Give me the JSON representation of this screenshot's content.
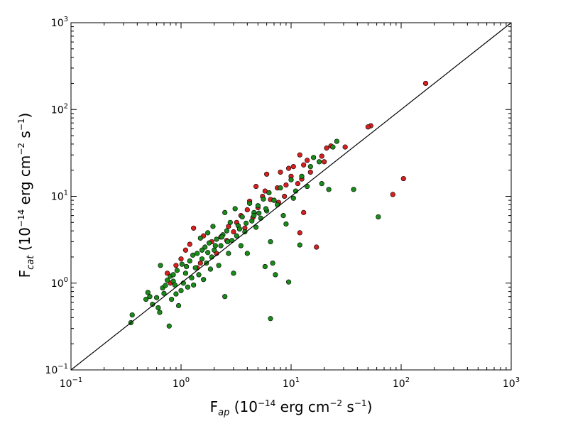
{
  "chart_data": {
    "type": "scatter",
    "title": "",
    "xscale": "log",
    "yscale": "log",
    "xlim": [
      0.1,
      1000
    ],
    "ylim": [
      0.1,
      1000
    ],
    "grid": false,
    "xlabel": {
      "main": "F",
      "sub": "ap",
      "rest1": " (10",
      "exp1": "−14",
      "rest2": " erg cm",
      "exp2": "−2",
      "rest3": " s",
      "exp3": "−1",
      "rest4": ")"
    },
    "ylabel": {
      "main": "F",
      "sub": "cat",
      "rest1": " (10",
      "exp1": "−14",
      "rest2": " erg cm",
      "exp2": "−2",
      "rest3": " s",
      "exp3": "−1",
      "rest4": ")"
    },
    "x_ticks": [
      {
        "value": 0.1,
        "base": "10",
        "exp": "−1"
      },
      {
        "value": 1,
        "base": "10",
        "exp": "0"
      },
      {
        "value": 10,
        "base": "10",
        "exp": "1"
      },
      {
        "value": 100,
        "base": "10",
        "exp": "2"
      },
      {
        "value": 1000,
        "base": "10",
        "exp": "3"
      }
    ],
    "y_ticks": [
      {
        "value": 0.1,
        "base": "10",
        "exp": "−1"
      },
      {
        "value": 1,
        "base": "10",
        "exp": "0"
      },
      {
        "value": 10,
        "base": "10",
        "exp": "1"
      },
      {
        "value": 100,
        "base": "10",
        "exp": "2"
      },
      {
        "value": 1000,
        "base": "10",
        "exp": "3"
      }
    ],
    "reference_line": {
      "type": "y=x",
      "color": "#000000"
    },
    "series": [
      {
        "color": "#d62020",
        "points": [
          [
            167,
            200
          ],
          [
            53,
            65
          ],
          [
            50,
            63
          ],
          [
            31,
            37
          ],
          [
            23,
            38
          ],
          [
            21,
            36
          ],
          [
            19,
            29
          ],
          [
            14,
            26
          ],
          [
            13,
            23
          ],
          [
            12,
            30
          ],
          [
            10.5,
            22
          ],
          [
            9.5,
            21
          ],
          [
            8,
            19
          ],
          [
            6,
            18
          ],
          [
            20,
            25
          ],
          [
            105,
            16
          ],
          [
            84,
            10.5
          ],
          [
            13,
            6.5
          ],
          [
            12,
            3.8
          ],
          [
            17,
            2.6
          ],
          [
            8.7,
            10
          ],
          [
            7.7,
            8.5
          ],
          [
            7,
            9
          ],
          [
            5.5,
            10
          ],
          [
            4.8,
            13
          ],
          [
            4.2,
            8.8
          ],
          [
            4,
            7
          ],
          [
            3.5,
            6
          ],
          [
            3.2,
            5
          ],
          [
            2.7,
            4.5
          ],
          [
            2.3,
            3.4
          ],
          [
            1.9,
            3
          ],
          [
            1.6,
            3.5
          ],
          [
            1.3,
            4.3
          ],
          [
            1.2,
            2.8
          ],
          [
            1.1,
            2.4
          ],
          [
            1.0,
            1.9
          ],
          [
            0.9,
            1.6
          ],
          [
            0.75,
            1.3
          ],
          [
            1.5,
            1.7
          ],
          [
            6.5,
            9.2
          ],
          [
            5.0,
            7.4
          ],
          [
            4.5,
            5.7
          ],
          [
            3.8,
            4.3
          ],
          [
            3.0,
            3.9
          ],
          [
            2.6,
            3.1
          ],
          [
            9.0,
            13.5
          ],
          [
            10,
            17
          ],
          [
            11.5,
            14
          ],
          [
            7.5,
            12.5
          ],
          [
            5.8,
            11.5
          ],
          [
            2.1,
            2.2
          ],
          [
            1.4,
            1.5
          ],
          [
            0.8,
            1.0
          ],
          [
            12.5,
            15.8
          ],
          [
            15,
            19
          ]
        ]
      },
      {
        "color": "#1a8a1a",
        "points": [
          [
            0.35,
            0.35
          ],
          [
            0.36,
            0.43
          ],
          [
            0.48,
            0.65
          ],
          [
            0.5,
            0.78
          ],
          [
            0.52,
            0.7
          ],
          [
            0.55,
            0.57
          ],
          [
            0.6,
            0.68
          ],
          [
            0.62,
            0.52
          ],
          [
            0.64,
            0.46
          ],
          [
            0.65,
            1.6
          ],
          [
            0.68,
            0.88
          ],
          [
            0.7,
            0.76
          ],
          [
            0.72,
            0.94
          ],
          [
            0.75,
            1.08
          ],
          [
            0.78,
            0.32
          ],
          [
            0.8,
            1.2
          ],
          [
            0.82,
            0.65
          ],
          [
            0.85,
            1.05
          ],
          [
            0.88,
            0.95
          ],
          [
            0.9,
            0.75
          ],
          [
            0.92,
            1.4
          ],
          [
            0.95,
            0.55
          ],
          [
            1.0,
            0.82
          ],
          [
            1.02,
            1.65
          ],
          [
            1.05,
            1.0
          ],
          [
            1.1,
            1.3
          ],
          [
            1.15,
            0.9
          ],
          [
            1.2,
            1.8
          ],
          [
            1.25,
            1.15
          ],
          [
            1.3,
            0.95
          ],
          [
            1.35,
            1.5
          ],
          [
            1.4,
            2.2
          ],
          [
            1.45,
            1.25
          ],
          [
            1.5,
            3.3
          ],
          [
            1.55,
            1.9
          ],
          [
            1.6,
            1.1
          ],
          [
            1.65,
            2.6
          ],
          [
            1.7,
            1.7
          ],
          [
            1.75,
            3.8
          ],
          [
            1.8,
            2.9
          ],
          [
            1.85,
            1.45
          ],
          [
            1.9,
            2.0
          ],
          [
            1.95,
            4.5
          ],
          [
            2.0,
            2.4
          ],
          [
            2.1,
            3.2
          ],
          [
            2.2,
            1.6
          ],
          [
            2.3,
            2.7
          ],
          [
            2.4,
            3.6
          ],
          [
            2.5,
            0.7
          ],
          [
            2.5,
            6.5
          ],
          [
            2.6,
            4.0
          ],
          [
            2.7,
            2.2
          ],
          [
            2.8,
            5.0
          ],
          [
            2.9,
            3.1
          ],
          [
            3.0,
            1.3
          ],
          [
            3.1,
            7.2
          ],
          [
            3.2,
            3.5
          ],
          [
            3.3,
            4.6
          ],
          [
            3.5,
            2.7
          ],
          [
            3.6,
            5.8
          ],
          [
            3.8,
            3.9
          ],
          [
            4.0,
            2.2
          ],
          [
            4.2,
            8.3
          ],
          [
            4.4,
            5.2
          ],
          [
            4.6,
            6.5
          ],
          [
            4.8,
            4.4
          ],
          [
            5.0,
            7.8
          ],
          [
            5.3,
            5.6
          ],
          [
            5.6,
            9.3
          ],
          [
            5.8,
            1.55
          ],
          [
            6.0,
            6.8
          ],
          [
            6.3,
            11
          ],
          [
            6.5,
            0.39
          ],
          [
            6.5,
            3.0
          ],
          [
            6.8,
            1.7
          ],
          [
            7.2,
            1.25
          ],
          [
            7.5,
            8.0
          ],
          [
            8.0,
            12.5
          ],
          [
            8.5,
            6.0
          ],
          [
            9.0,
            4.8
          ],
          [
            9.5,
            1.03
          ],
          [
            10,
            15.5
          ],
          [
            10.5,
            9.5
          ],
          [
            11,
            11.5
          ],
          [
            12,
            2.75
          ],
          [
            12.5,
            17
          ],
          [
            14,
            13
          ],
          [
            15,
            22
          ],
          [
            16,
            28
          ],
          [
            18,
            25
          ],
          [
            19,
            14
          ],
          [
            22,
            12
          ],
          [
            24,
            37
          ],
          [
            26,
            43
          ],
          [
            37,
            12
          ],
          [
            62,
            5.8
          ],
          [
            0.85,
            1.25
          ],
          [
            1.12,
            1.55
          ],
          [
            1.28,
            2.1
          ],
          [
            1.55,
            2.4
          ],
          [
            1.75,
            2.25
          ],
          [
            2.05,
            2.7
          ],
          [
            2.35,
            3.4
          ],
          [
            2.65,
            3.0
          ],
          [
            3.4,
            4.2
          ],
          [
            3.9,
            4.9
          ],
          [
            4.6,
            6.0
          ],
          [
            5.1,
            6.4
          ],
          [
            5.9,
            7.2
          ],
          [
            7.0,
            9.0
          ]
        ]
      }
    ]
  }
}
